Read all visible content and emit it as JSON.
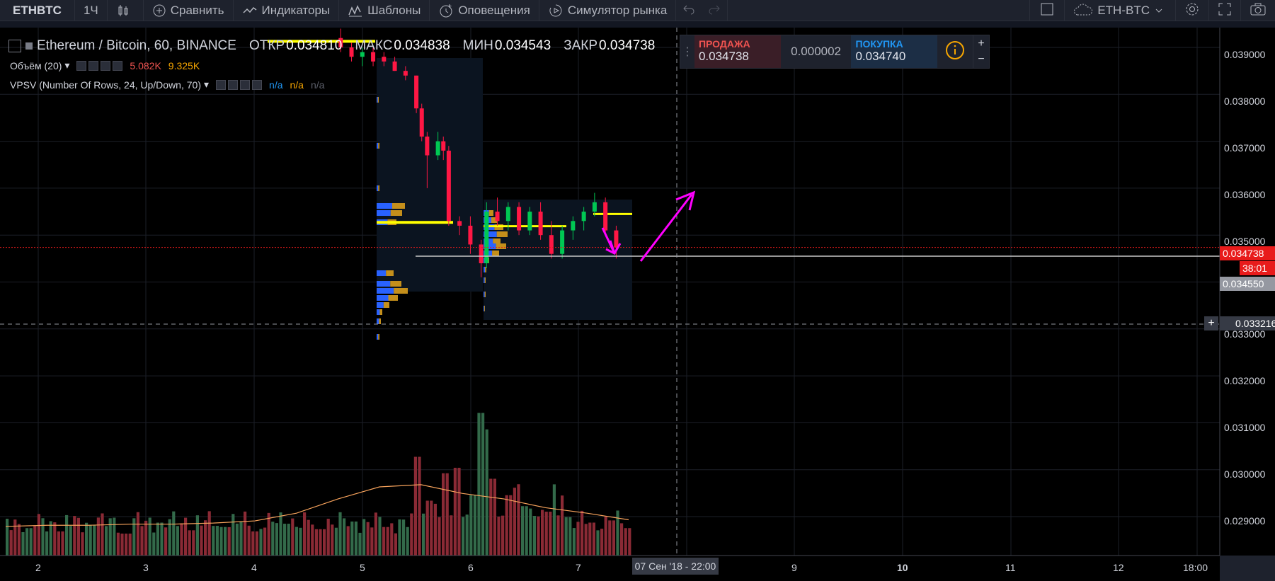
{
  "toolbar": {
    "symbol": "ETHBTC",
    "interval": "1Ч",
    "compare": "Сравнить",
    "indicators": "Индикаторы",
    "templates": "Шаблоны",
    "alerts": "Оповещения",
    "replay": "Симулятор рынка",
    "pair": "ETH-BTC"
  },
  "legend": {
    "title": "Ethereum / Bitcoin, 60, BINANCE",
    "open_label": "ОТКР",
    "open": "0.034810",
    "high_label": "МАКС",
    "high": "0.034838",
    "low_label": "МИН",
    "low": "0.034543",
    "close_label": "ЗАКР",
    "close": "0.034738",
    "volume_name": "Объём (20)",
    "volume_v1": "5.082K",
    "volume_v2": "9.325K",
    "vpsv_name": "VPSV (Number Of Rows, 24, Up/Down, 70)",
    "na1": "n/a",
    "na2": "n/a",
    "na3": "n/a"
  },
  "trade": {
    "sell_label": "ПРОДАЖА",
    "sell_price": "0.034738",
    "spread": "0.000002",
    "buy_label": "ПОКУПКА",
    "buy_price": "0.034740",
    "plus": "+",
    "minus": "−"
  },
  "price_axis": {
    "ticks": [
      "0.039000",
      "0.038000",
      "0.037000",
      "0.036000",
      "0.035000",
      "0.033000",
      "0.032000",
      "0.031000",
      "0.030000",
      "0.029000"
    ],
    "last_price": "0.034738",
    "countdown": "38:01",
    "level_line": "0.034550",
    "crosshair_price": "0.033216"
  },
  "time_axis": {
    "ticks": [
      "2",
      "3",
      "4",
      "5",
      "6",
      "7",
      "9",
      "10",
      "11",
      "12",
      "18:00"
    ],
    "crosshair_date": "07 Сен '18 - 22:00"
  },
  "colors": {
    "bg": "#131722",
    "up": "#26a69a",
    "down": "#ef5350",
    "candle_up": "#00c853",
    "candle_down": "#ff1744",
    "poc": "#ffff00",
    "annotation": "#ff00ff",
    "last_price": "#e81b1b"
  },
  "chart_data": {
    "type": "candlestick",
    "symbol": "Ethereum / Bitcoin",
    "exchange": "BINANCE",
    "timeframe": "60",
    "ylim": [
      0.0282,
      0.0396
    ],
    "current": {
      "open": 0.03481,
      "high": 0.034838,
      "low": 0.034543,
      "close": 0.034738
    },
    "candles": [
      {
        "t": "4.8",
        "o": 0.0392,
        "h": 0.0394,
        "l": 0.0389,
        "c": 0.039
      },
      {
        "t": "4.9",
        "o": 0.039,
        "h": 0.0391,
        "l": 0.0387,
        "c": 0.0388
      },
      {
        "t": "5.0",
        "o": 0.0388,
        "h": 0.039,
        "l": 0.0386,
        "c": 0.0389
      },
      {
        "t": "5.1",
        "o": 0.0389,
        "h": 0.039,
        "l": 0.0386,
        "c": 0.0387
      },
      {
        "t": "5.2",
        "o": 0.0388,
        "h": 0.0389,
        "l": 0.0386,
        "c": 0.0387
      },
      {
        "t": "5.3",
        "o": 0.0387,
        "h": 0.0388,
        "l": 0.0385,
        "c": 0.0385
      },
      {
        "t": "5.4",
        "o": 0.0385,
        "h": 0.0386,
        "l": 0.0383,
        "c": 0.0384
      },
      {
        "t": "5.5",
        "o": 0.0384,
        "h": 0.0384,
        "l": 0.0376,
        "c": 0.0377
      },
      {
        "t": "5.55",
        "o": 0.0377,
        "h": 0.0378,
        "l": 0.037,
        "c": 0.0371
      },
      {
        "t": "5.6",
        "o": 0.0371,
        "h": 0.0372,
        "l": 0.036,
        "c": 0.0367
      },
      {
        "t": "5.7",
        "o": 0.0367,
        "h": 0.0372,
        "l": 0.0366,
        "c": 0.037
      },
      {
        "t": "5.75",
        "o": 0.037,
        "h": 0.0371,
        "l": 0.0366,
        "c": 0.0368
      },
      {
        "t": "5.8",
        "o": 0.0368,
        "h": 0.0369,
        "l": 0.0352,
        "c": 0.0353
      },
      {
        "t": "5.9",
        "o": 0.0353,
        "h": 0.0354,
        "l": 0.035,
        "c": 0.0352
      },
      {
        "t": "6.0",
        "o": 0.0352,
        "h": 0.0354,
        "l": 0.0346,
        "c": 0.0348
      },
      {
        "t": "6.1",
        "o": 0.0348,
        "h": 0.0349,
        "l": 0.0341,
        "c": 0.0344
      },
      {
        "t": "6.15",
        "o": 0.0344,
        "h": 0.0357,
        "l": 0.0343,
        "c": 0.0355
      },
      {
        "t": "6.25",
        "o": 0.0355,
        "h": 0.0358,
        "l": 0.0352,
        "c": 0.0353
      },
      {
        "t": "6.35",
        "o": 0.0353,
        "h": 0.0357,
        "l": 0.0351,
        "c": 0.0356
      },
      {
        "t": "6.45",
        "o": 0.0356,
        "h": 0.0357,
        "l": 0.035,
        "c": 0.0351
      },
      {
        "t": "6.55",
        "o": 0.0351,
        "h": 0.0356,
        "l": 0.035,
        "c": 0.0355
      },
      {
        "t": "6.65",
        "o": 0.0355,
        "h": 0.0357,
        "l": 0.0349,
        "c": 0.035
      },
      {
        "t": "6.75",
        "o": 0.035,
        "h": 0.0353,
        "l": 0.0345,
        "c": 0.0346
      },
      {
        "t": "6.85",
        "o": 0.0346,
        "h": 0.0352,
        "l": 0.0345,
        "c": 0.0351
      },
      {
        "t": "6.95",
        "o": 0.0351,
        "h": 0.0354,
        "l": 0.0349,
        "c": 0.0353
      },
      {
        "t": "7.05",
        "o": 0.0353,
        "h": 0.0356,
        "l": 0.0351,
        "c": 0.0355
      },
      {
        "t": "7.15",
        "o": 0.0355,
        "h": 0.0359,
        "l": 0.0354,
        "c": 0.0357
      },
      {
        "t": "7.25",
        "o": 0.0357,
        "h": 0.0358,
        "l": 0.035,
        "c": 0.0351
      },
      {
        "t": "7.35",
        "o": 0.0351,
        "h": 0.0352,
        "l": 0.0345,
        "c": 0.03474
      }
    ],
    "volume": [
      {
        "t": "1.9",
        "v": 2.5,
        "up": true
      },
      {
        "t": "2.2",
        "v": 2.2,
        "up": false
      },
      {
        "t": "2.5",
        "v": 2.8,
        "up": true
      },
      {
        "t": "2.8",
        "v": 2.0,
        "up": false
      },
      {
        "t": "3.1",
        "v": 3.0,
        "up": true
      },
      {
        "t": "3.4",
        "v": 2.3,
        "up": false
      },
      {
        "t": "3.7",
        "v": 2.6,
        "up": true
      },
      {
        "t": "4.0",
        "v": 2.2,
        "up": false
      },
      {
        "t": "4.3",
        "v": 2.9,
        "up": true
      },
      {
        "t": "4.6",
        "v": 2.4,
        "up": false
      },
      {
        "t": "4.9",
        "v": 3.1,
        "up": true
      },
      {
        "t": "5.2",
        "v": 2.6,
        "up": false
      },
      {
        "t": "5.5",
        "v": 9.0,
        "up": false
      },
      {
        "t": "5.6",
        "v": 5.0,
        "up": false
      },
      {
        "t": "5.75",
        "v": 7.5,
        "up": false
      },
      {
        "t": "5.85",
        "v": 8.0,
        "up": false
      },
      {
        "t": "6.0",
        "v": 5.5,
        "up": true
      },
      {
        "t": "6.1",
        "v": 13.0,
        "up": true
      },
      {
        "t": "6.15",
        "v": 11.5,
        "up": true
      },
      {
        "t": "6.2",
        "v": 7.0,
        "up": false
      },
      {
        "t": "6.35",
        "v": 5.5,
        "up": false
      },
      {
        "t": "6.5",
        "v": 4.5,
        "up": true
      },
      {
        "t": "6.7",
        "v": 4.0,
        "up": false
      },
      {
        "t": "6.9",
        "v": 3.5,
        "up": true
      },
      {
        "t": "7.1",
        "v": 3.0,
        "up": false
      },
      {
        "t": "7.3",
        "v": 3.2,
        "up": false
      },
      {
        "t": "7.45",
        "v": 2.5,
        "up": false
      }
    ],
    "volume_ma": [
      2.4,
      2.5,
      2.5,
      2.6,
      2.6,
      2.7,
      2.9,
      3.6,
      4.9,
      6.0,
      6.2,
      5.4,
      4.9,
      4.1,
      3.6,
      3.0
    ],
    "volume_profile": {
      "poc_price": 0.03527,
      "poc_price_2": 0.03519,
      "poc_price_3": 0.03545,
      "poc_price_top": 0.03913
    },
    "support_level": 0.03455,
    "annotations": [
      {
        "kind": "arrow-down",
        "from_price": 0.035,
        "to_price": 0.0346
      },
      {
        "kind": "arrow-up",
        "from_price": 0.0346,
        "to_price": 0.036
      }
    ],
    "x_ticks": [
      "2",
      "3",
      "4",
      "5",
      "6",
      "7",
      "9",
      "10",
      "11",
      "12",
      "18:00"
    ]
  }
}
